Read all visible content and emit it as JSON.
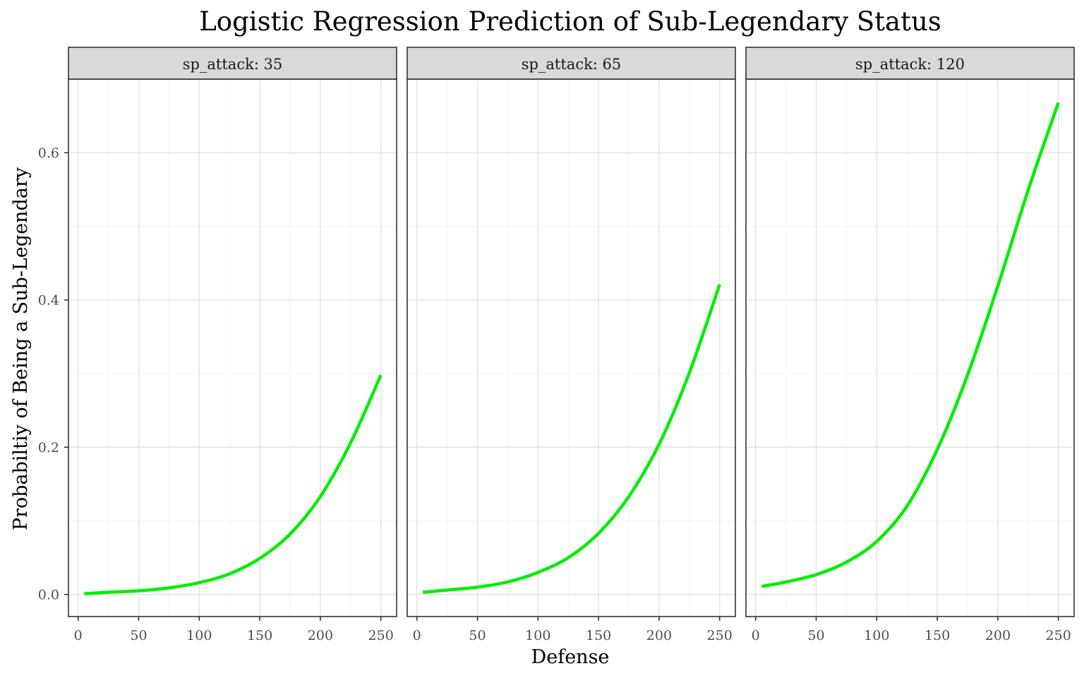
{
  "chart_data": {
    "type": "line",
    "title": "Logistic Regression Prediction of Sub-Legendary Status",
    "xlabel": "Defense",
    "ylabel": "Probabiltiy of Being a Sub-Legendary",
    "xlim": [
      -8,
      263
    ],
    "ylim": [
      -0.03,
      0.7
    ],
    "x_ticks": [
      0,
      50,
      100,
      150,
      200,
      250
    ],
    "y_ticks": [
      0.0,
      0.2,
      0.4,
      0.6
    ],
    "y_tick_labels": [
      "0.0",
      "0.2",
      "0.4",
      "0.6"
    ],
    "grid": true,
    "line_color": "#00ee00",
    "facet_label_prefix": "sp_attack: ",
    "panels": [
      {
        "label": "sp_attack: 35",
        "x": [
          5,
          25,
          50,
          75,
          100,
          125,
          150,
          175,
          200,
          225,
          250
        ],
        "y": [
          0.001,
          0.003,
          0.005,
          0.009,
          0.016,
          0.028,
          0.049,
          0.082,
          0.133,
          0.206,
          0.298
        ]
      },
      {
        "label": "sp_attack: 65",
        "x": [
          5,
          25,
          50,
          75,
          100,
          125,
          150,
          175,
          200,
          225,
          250
        ],
        "y": [
          0.003,
          0.006,
          0.01,
          0.017,
          0.03,
          0.05,
          0.083,
          0.133,
          0.204,
          0.301,
          0.421
        ]
      },
      {
        "label": "sp_attack: 120",
        "x": [
          5,
          25,
          50,
          75,
          100,
          125,
          150,
          175,
          200,
          225,
          250
        ],
        "y": [
          0.011,
          0.017,
          0.027,
          0.044,
          0.072,
          0.12,
          0.197,
          0.298,
          0.419,
          0.549,
          0.668
        ]
      }
    ]
  }
}
